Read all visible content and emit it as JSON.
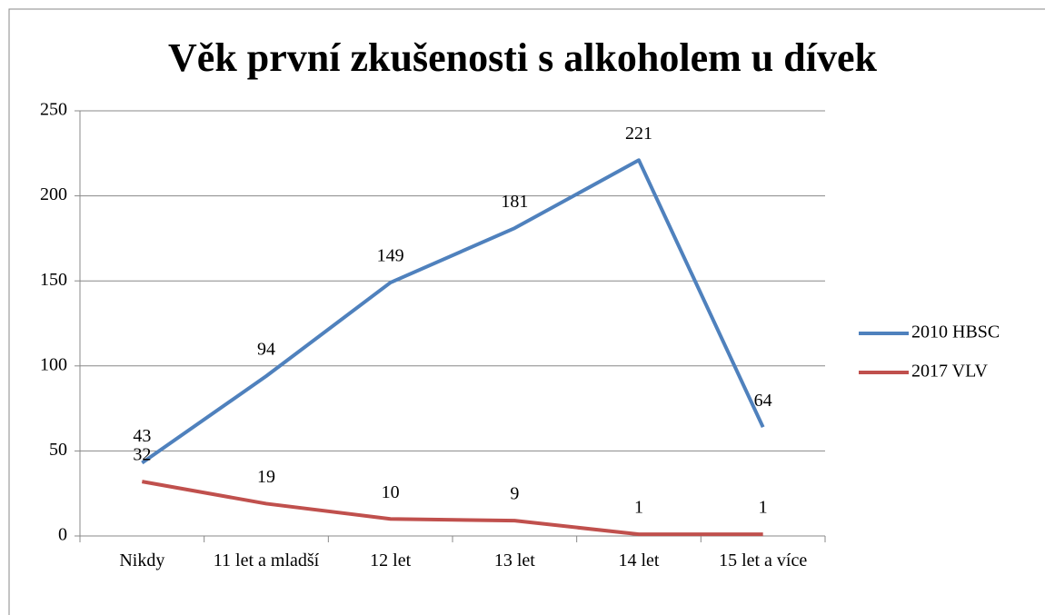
{
  "chart_data": {
    "type": "line",
    "title": "Věk první zkušenosti s alkoholem u dívek",
    "categories": [
      "Nikdy",
      "11 let a mladší",
      "12 let",
      "13 let",
      "14 let",
      "15 let a více"
    ],
    "series": [
      {
        "name": "2010 HBSC",
        "color": "#4f81bd",
        "values": [
          43,
          94,
          149,
          181,
          221,
          64
        ]
      },
      {
        "name": "2017 VLV",
        "color": "#c0504d",
        "values": [
          32,
          19,
          10,
          9,
          1,
          1
        ]
      }
    ],
    "ylim": [
      0,
      250
    ],
    "yticks": [
      0,
      50,
      100,
      150,
      200,
      250
    ],
    "grid": true,
    "legend": "right"
  }
}
